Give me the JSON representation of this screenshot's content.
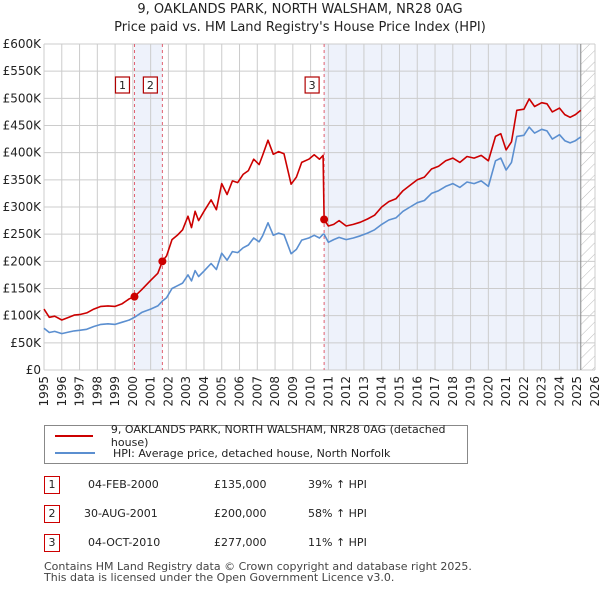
{
  "header": {
    "title": "9, OAKLANDS PARK, NORTH WALSHAM, NR28 0AG",
    "subtitle": "Price paid vs. HM Land Registry's House Price Index (HPI)"
  },
  "colors": {
    "property": "#cc0000",
    "hpi": "#5b8fd0",
    "shade": "#eef2fb",
    "marker_line": "#e06070",
    "grid": "#cccccc"
  },
  "chart_data": {
    "type": "line",
    "title": "9, OAKLANDS PARK, NORTH WALSHAM, NR28 0AG — Price paid vs. HM Land Registry's House Price Index (HPI)",
    "xlabel": "",
    "ylabel": "",
    "xlim": [
      1995,
      2026
    ],
    "ylim": [
      0,
      600000
    ],
    "grid": true,
    "x_ticks": [
      "1995",
      "1996",
      "1997",
      "1998",
      "1999",
      "2000",
      "2001",
      "2002",
      "2003",
      "2004",
      "2005",
      "2006",
      "2007",
      "2008",
      "2009",
      "2010",
      "2011",
      "2012",
      "2013",
      "2014",
      "2015",
      "2016",
      "2017",
      "2018",
      "2019",
      "2020",
      "2021",
      "2022",
      "2023",
      "2024",
      "2025",
      "2026"
    ],
    "y_ticks": [
      {
        "value": 0,
        "label": "£0"
      },
      {
        "value": 50000,
        "label": "£50K"
      },
      {
        "value": 100000,
        "label": "£100K"
      },
      {
        "value": 150000,
        "label": "£150K"
      },
      {
        "value": 200000,
        "label": "£200K"
      },
      {
        "value": 250000,
        "label": "£250K"
      },
      {
        "value": 300000,
        "label": "£300K"
      },
      {
        "value": 350000,
        "label": "£350K"
      },
      {
        "value": 400000,
        "label": "£400K"
      },
      {
        "value": 450000,
        "label": "£450K"
      },
      {
        "value": 500000,
        "label": "£500K"
      },
      {
        "value": 550000,
        "label": "£550K"
      },
      {
        "value": 600000,
        "label": "£600K"
      }
    ],
    "series": [
      {
        "name": "9, OAKLANDS PARK, NORTH WALSHAM, NR28 0AG (detached house)",
        "color": "#cc0000",
        "x": [
          1995.0,
          1995.3,
          1995.6,
          1996.0,
          1996.4,
          1996.7,
          1997.0,
          1997.4,
          1997.8,
          1998.2,
          1998.6,
          1999.0,
          1999.4,
          1999.8,
          2000.09,
          2000.5,
          2001.0,
          2001.4,
          2001.66,
          2001.9,
          2002.2,
          2002.5,
          2002.8,
          2003.1,
          2003.3,
          2003.5,
          2003.7,
          2004.0,
          2004.4,
          2004.7,
          2005.0,
          2005.3,
          2005.6,
          2005.9,
          2006.2,
          2006.5,
          2006.8,
          2007.1,
          2007.3,
          2007.6,
          2007.9,
          2008.2,
          2008.5,
          2008.9,
          2009.2,
          2009.5,
          2009.9,
          2010.2,
          2010.5,
          2010.7,
          2010.76,
          2011.0,
          2011.3,
          2011.6,
          2012.0,
          2012.4,
          2012.8,
          2013.2,
          2013.6,
          2014.0,
          2014.4,
          2014.8,
          2015.2,
          2015.6,
          2016.0,
          2016.4,
          2016.8,
          2017.2,
          2017.6,
          2018.0,
          2018.4,
          2018.8,
          2019.2,
          2019.6,
          2020.0,
          2020.4,
          2020.7,
          2021.0,
          2021.3,
          2021.6,
          2022.0,
          2022.3,
          2022.6,
          2023.0,
          2023.3,
          2023.6,
          2024.0,
          2024.3,
          2024.6,
          2024.9,
          2025.2
        ],
        "values": [
          112000,
          97000,
          99000,
          92000,
          97000,
          101000,
          102000,
          105000,
          112000,
          117000,
          118000,
          117000,
          122000,
          131000,
          135000,
          148000,
          165000,
          178000,
          200000,
          210000,
          240000,
          248000,
          258000,
          283000,
          262000,
          292000,
          275000,
          292000,
          313000,
          295000,
          343000,
          323000,
          348000,
          345000,
          360000,
          367000,
          388000,
          378000,
          395000,
          423000,
          397000,
          402000,
          398000,
          342000,
          355000,
          382000,
          388000,
          396000,
          388000,
          395000,
          277000,
          265000,
          268000,
          275000,
          265000,
          268000,
          272000,
          278000,
          285000,
          300000,
          310000,
          315000,
          330000,
          340000,
          350000,
          355000,
          370000,
          375000,
          385000,
          390000,
          382000,
          393000,
          390000,
          395000,
          385000,
          430000,
          435000,
          405000,
          420000,
          478000,
          480000,
          499000,
          485000,
          492000,
          490000,
          475000,
          482000,
          470000,
          465000,
          470000,
          478000
        ]
      },
      {
        "name": "HPI: Average price, detached house, North Norfolk",
        "color": "#5b8fd0",
        "x": [
          1995.0,
          1995.3,
          1995.6,
          1996.0,
          1996.4,
          1996.7,
          1997.0,
          1997.4,
          1997.8,
          1998.2,
          1998.6,
          1999.0,
          1999.4,
          1999.8,
          2000.09,
          2000.5,
          2001.0,
          2001.4,
          2001.66,
          2001.9,
          2002.2,
          2002.5,
          2002.8,
          2003.1,
          2003.3,
          2003.5,
          2003.7,
          2004.0,
          2004.4,
          2004.7,
          2005.0,
          2005.3,
          2005.6,
          2005.9,
          2006.2,
          2006.5,
          2006.8,
          2007.1,
          2007.3,
          2007.6,
          2007.9,
          2008.2,
          2008.5,
          2008.9,
          2009.2,
          2009.5,
          2009.9,
          2010.2,
          2010.5,
          2010.7,
          2010.76,
          2011.0,
          2011.3,
          2011.6,
          2012.0,
          2012.4,
          2012.8,
          2013.2,
          2013.6,
          2014.0,
          2014.4,
          2014.8,
          2015.2,
          2015.6,
          2016.0,
          2016.4,
          2016.8,
          2017.2,
          2017.6,
          2018.0,
          2018.4,
          2018.8,
          2019.2,
          2019.6,
          2020.0,
          2020.4,
          2020.7,
          2021.0,
          2021.3,
          2021.6,
          2022.0,
          2022.3,
          2022.6,
          2023.0,
          2023.3,
          2023.6,
          2024.0,
          2024.3,
          2024.6,
          2024.9,
          2025.2
        ],
        "values": [
          77000,
          69000,
          71000,
          67000,
          70000,
          72000,
          73000,
          75000,
          80000,
          84000,
          85000,
          84000,
          88000,
          92000,
          97000,
          106000,
          112000,
          118000,
          127000,
          133000,
          150000,
          155000,
          160000,
          175000,
          164000,
          183000,
          172000,
          182000,
          196000,
          185000,
          215000,
          202000,
          218000,
          216000,
          225000,
          230000,
          243000,
          236000,
          247000,
          271000,
          248000,
          252000,
          249000,
          214000,
          222000,
          239000,
          243000,
          248000,
          243000,
          250000,
          250000,
          235000,
          240000,
          244000,
          240000,
          243000,
          247000,
          252000,
          258000,
          268000,
          276000,
          280000,
          292000,
          300000,
          308000,
          312000,
          325000,
          330000,
          338000,
          343000,
          336000,
          346000,
          343000,
          348000,
          338000,
          385000,
          390000,
          368000,
          382000,
          430000,
          432000,
          447000,
          436000,
          443000,
          440000,
          425000,
          433000,
          422000,
          418000,
          422000,
          429000
        ]
      }
    ],
    "sales": [
      {
        "id": "1",
        "x": 2000.09,
        "value": 135000
      },
      {
        "id": "2",
        "x": 2001.66,
        "value": 200000
      },
      {
        "id": "3",
        "x": 2010.76,
        "value": 277000
      }
    ],
    "shaded_ranges": [
      [
        2000.09,
        2001.66
      ],
      [
        2010.76,
        2025.2
      ]
    ],
    "hatched_from": 2025.2,
    "legend_position": "below"
  },
  "legend": {
    "items": [
      {
        "label": "9, OAKLANDS PARK, NORTH WALSHAM, NR28 0AG (detached house)"
      },
      {
        "label": "HPI: Average price, detached house, North Norfolk"
      }
    ]
  },
  "transactions": [
    {
      "id": "1",
      "date": "04-FEB-2000",
      "price": "£135,000",
      "hpi": "39% ↑ HPI"
    },
    {
      "id": "2",
      "date": "30-AUG-2001",
      "price": "£200,000",
      "hpi": "58% ↑ HPI"
    },
    {
      "id": "3",
      "date": "04-OCT-2010",
      "price": "£277,000",
      "hpi": "11% ↑ HPI"
    }
  ],
  "footer": {
    "line1": "Contains HM Land Registry data © Crown copyright and database right 2025.",
    "line2": "This data is licensed under the Open Government Licence v3.0."
  }
}
